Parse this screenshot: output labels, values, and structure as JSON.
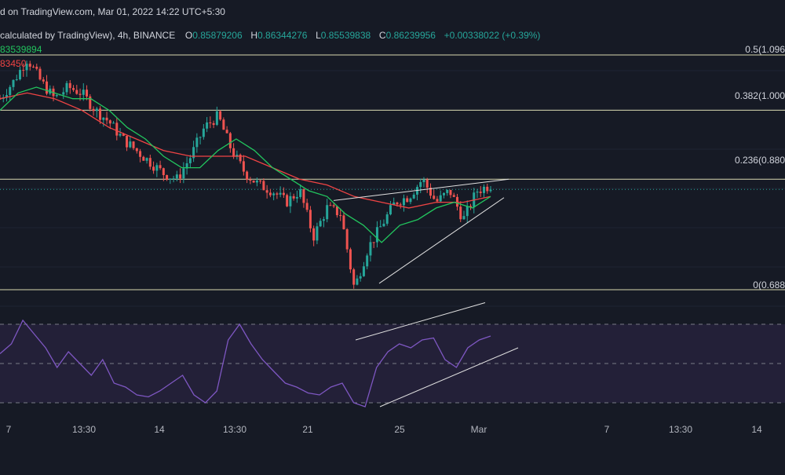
{
  "header": {
    "published": "d on TradingView.com, Mar 01, 2022 14:22 UTC+5:30",
    "symbol_line": "calculated by TradingView), 4h, BINANCE",
    "ohlc": [
      {
        "key": "O",
        "value": "0.85879206"
      },
      {
        "key": "H",
        "value": "0.86344276"
      },
      {
        "key": "L",
        "value": "0.85539838"
      },
      {
        "key": "C",
        "value": "0.86239956"
      },
      {
        "key": "",
        "value": "+0.00338022 (+0.39%)"
      }
    ]
  },
  "moving_averages": {
    "green_label": "83539894",
    "red_label": "83450",
    "green_color": "#22c55e",
    "red_color": "#ef4444"
  },
  "colors": {
    "background": "#161a25",
    "up_candle": "#26a69a",
    "down_candle": "#ef5350",
    "rsi_line": "#7e57c2",
    "rsi_band": "#2a2340",
    "fib_line": "#d8d8b0"
  },
  "chart_data": [
    {
      "type": "candlestick",
      "title": "",
      "interval": "4h",
      "exchange": "BINANCE",
      "x_ticks": [
        "7",
        "13:30",
        "14",
        "13:30",
        "21",
        "25",
        "Mar",
        "7",
        "13:30",
        "14"
      ],
      "fib_levels": [
        {
          "ratio": "0.5",
          "label": "0.5(1.096"
        },
        {
          "ratio": "0.382",
          "label": "0.382(1.000"
        },
        {
          "ratio": "0.236",
          "label": "0.236(0.880"
        },
        {
          "ratio": "0",
          "label": "0(0.688"
        }
      ],
      "price_range": [
        0.688,
        1.096
      ],
      "last_close": 0.86239956,
      "series_summary": [
        {
          "name": "price",
          "path": [
            1.02,
            1.05,
            1.09,
            1.05,
            1.02,
            1.04,
            1.03,
            1.0,
            0.98,
            0.95,
            0.93,
            0.91,
            0.89,
            0.88,
            0.92,
            0.97,
            0.99,
            0.93,
            0.89,
            0.87,
            0.86,
            0.84,
            0.86,
            0.78,
            0.83,
            0.82,
            0.69,
            0.76,
            0.8,
            0.84,
            0.85,
            0.88,
            0.84,
            0.86,
            0.81,
            0.86,
            0.87
          ]
        },
        {
          "name": "ma-green",
          "path": [
            1.0,
            1.03,
            1.04,
            1.03,
            1.02,
            1.02,
            1.0,
            0.97,
            0.95,
            0.92,
            0.9,
            0.9,
            0.93,
            0.95,
            0.93,
            0.9,
            0.88,
            0.86,
            0.85,
            0.82,
            0.8,
            0.77,
            0.8,
            0.81,
            0.83,
            0.84,
            0.83,
            0.85
          ]
        },
        {
          "name": "ma-red",
          "path": [
            1.02,
            1.03,
            1.02,
            1.0,
            0.97,
            0.95,
            0.93,
            0.92,
            0.92,
            0.92,
            0.9,
            0.88,
            0.87,
            0.85,
            0.84,
            0.83,
            0.84,
            0.84,
            0.85
          ]
        }
      ]
    },
    {
      "type": "line",
      "title": "",
      "band": [
        30,
        70
      ],
      "ylim": [
        20,
        80
      ],
      "series": [
        {
          "values": [
            55,
            60,
            72,
            65,
            58,
            48,
            56,
            50,
            44,
            52,
            40,
            38,
            34,
            33,
            36,
            40,
            44,
            34,
            30,
            36,
            62,
            70,
            60,
            52,
            46,
            40,
            38,
            35,
            34,
            38,
            40,
            30,
            28,
            48,
            56,
            60,
            58,
            62,
            63,
            52,
            48,
            58,
            62,
            64
          ]
        }
      ]
    }
  ]
}
